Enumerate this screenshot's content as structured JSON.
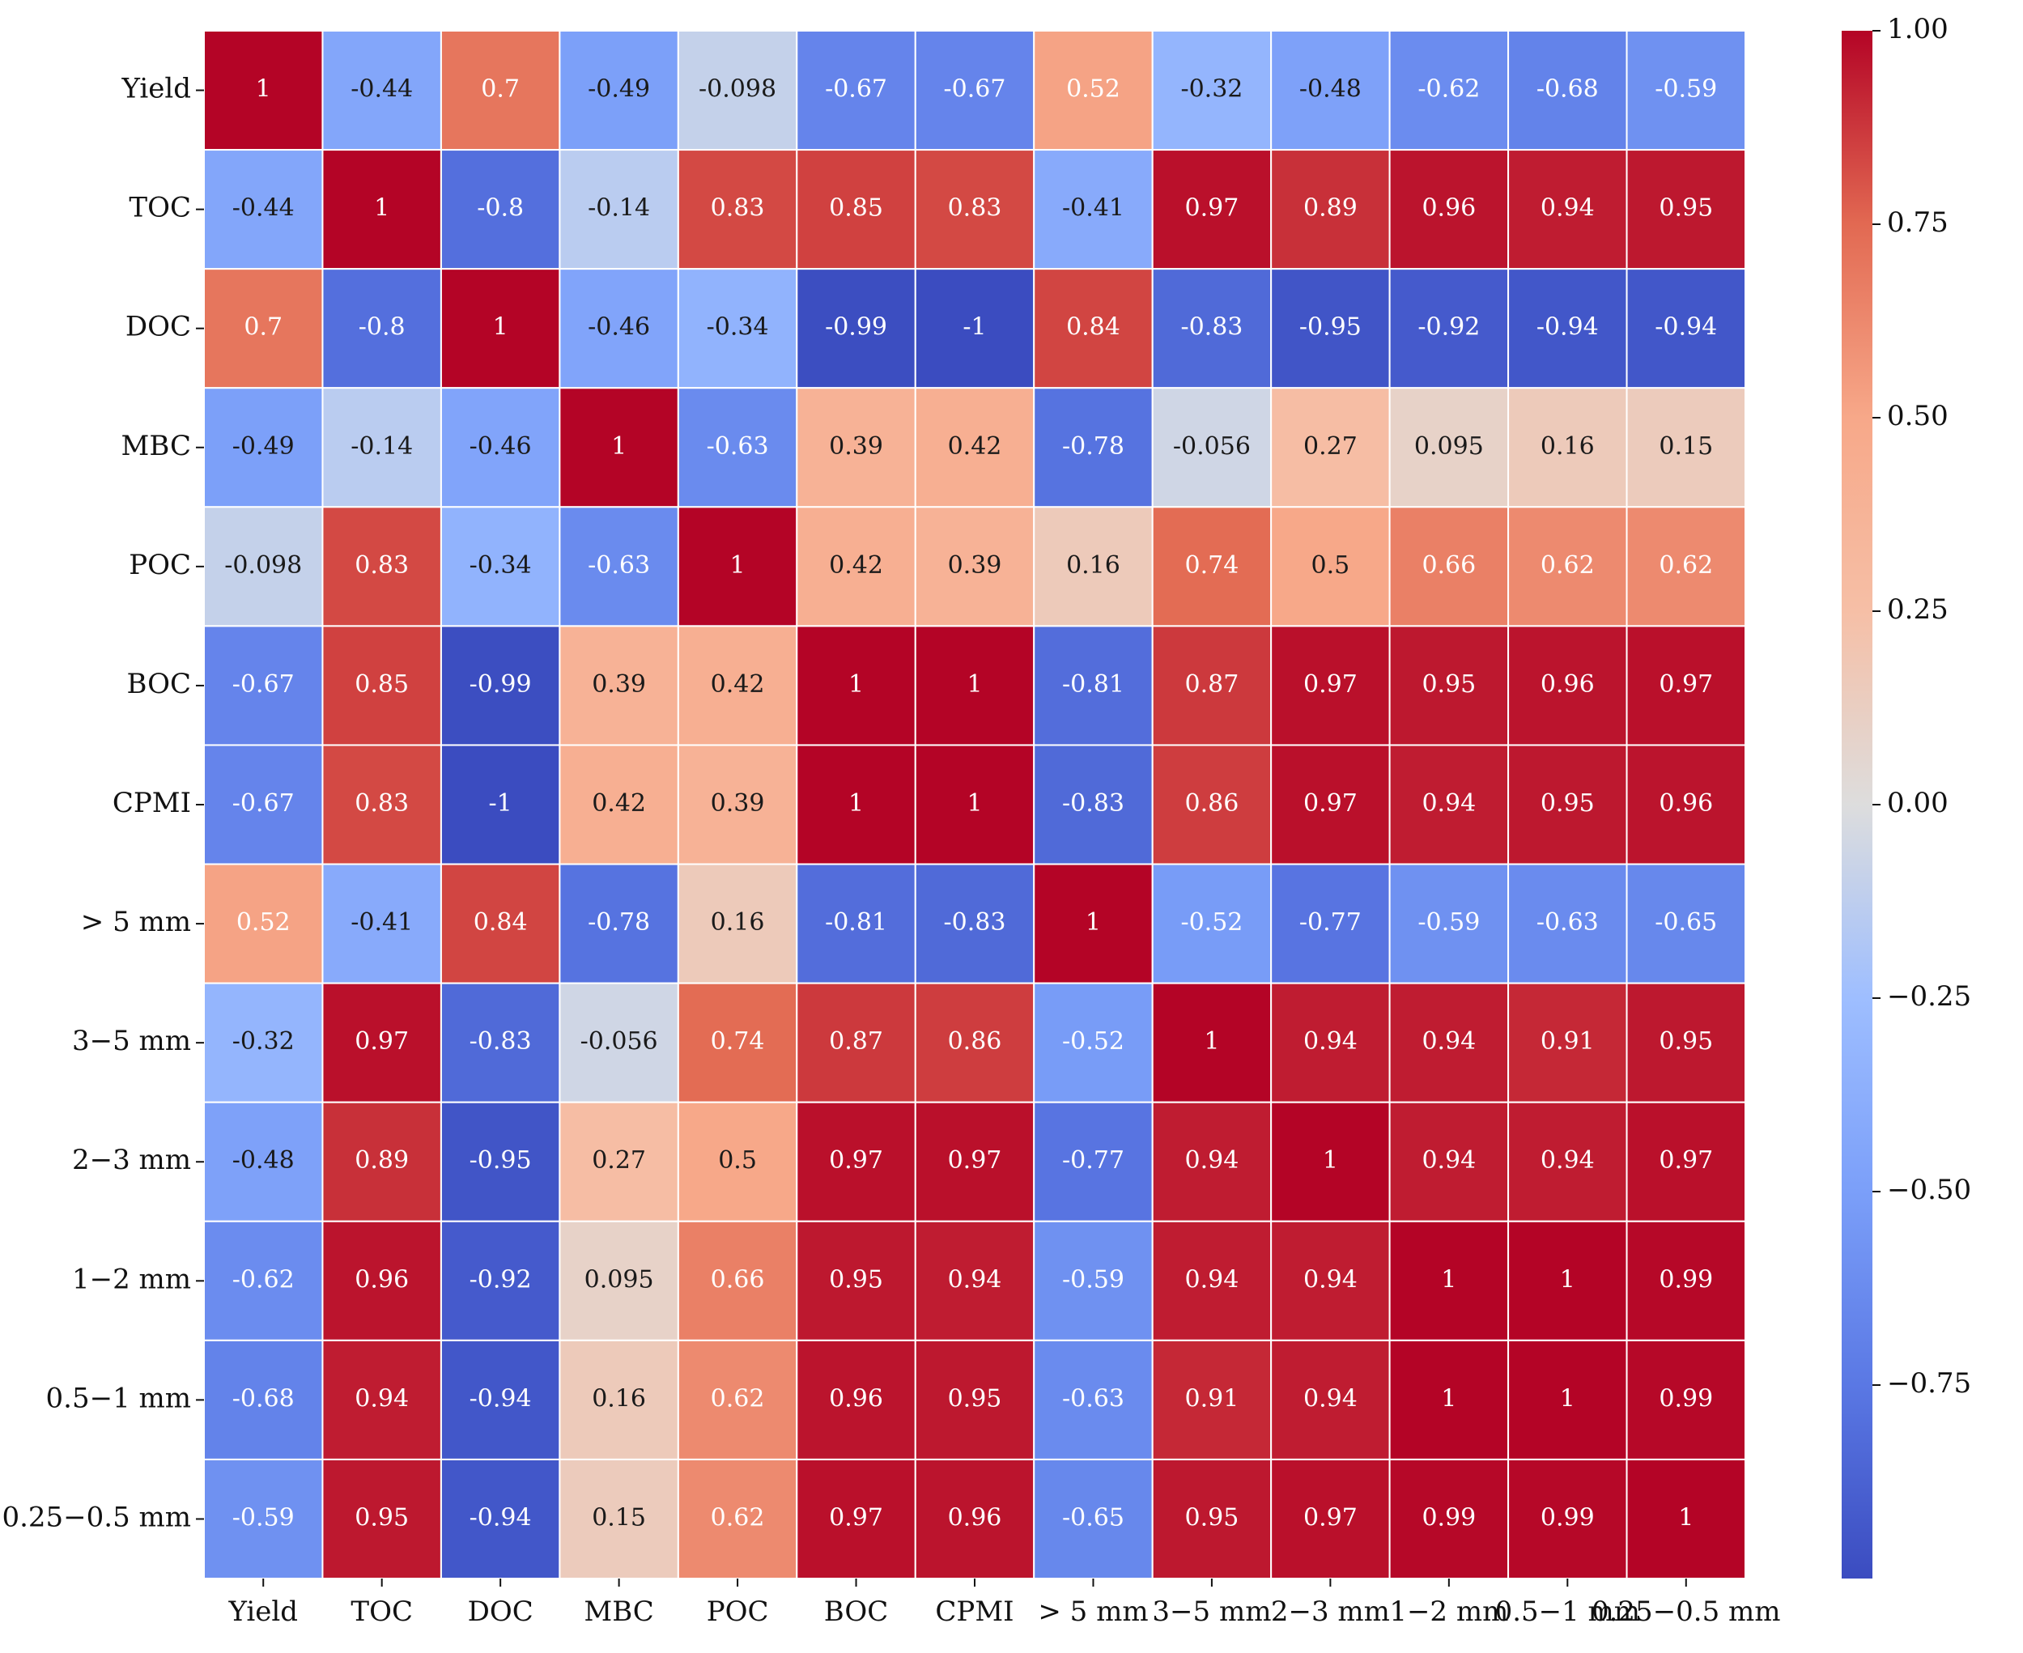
{
  "chart_data": {
    "type": "heatmap",
    "title": "",
    "xlabel": "",
    "ylabel": "",
    "row_labels": [
      "Yield",
      "TOC",
      "DOC",
      "MBC",
      "POC",
      "BOC",
      "CPMI",
      "> 5 mm",
      "3−5 mm",
      "2−3 mm",
      "1−2 mm",
      "0.5−1 mm",
      "0.25−0.5 mm"
    ],
    "col_labels": [
      "Yield",
      "TOC",
      "DOC",
      "MBC",
      "POC",
      "BOC",
      "CPMI",
      "> 5 mm",
      "3−5 mm",
      "2−3 mm",
      "1−2 mm",
      "0.5−1 mm",
      "0.25−0.5 mm"
    ],
    "values": [
      [
        1,
        -0.44,
        0.7,
        -0.49,
        -0.098,
        -0.67,
        -0.67,
        0.52,
        -0.32,
        -0.48,
        -0.62,
        -0.68,
        -0.59
      ],
      [
        -0.44,
        1,
        -0.8,
        -0.14,
        0.83,
        0.85,
        0.83,
        -0.41,
        0.97,
        0.89,
        0.96,
        0.94,
        0.95
      ],
      [
        0.7,
        -0.8,
        1,
        -0.46,
        -0.34,
        -0.99,
        -1,
        0.84,
        -0.83,
        -0.95,
        -0.92,
        -0.94,
        -0.94
      ],
      [
        -0.49,
        -0.14,
        -0.46,
        1,
        -0.63,
        0.39,
        0.42,
        -0.78,
        -0.056,
        0.27,
        0.095,
        0.16,
        0.15
      ],
      [
        -0.098,
        0.83,
        -0.34,
        -0.63,
        1,
        0.42,
        0.39,
        0.16,
        0.74,
        0.5,
        0.66,
        0.62,
        0.62
      ],
      [
        -0.67,
        0.85,
        -0.99,
        0.39,
        0.42,
        1,
        1,
        -0.81,
        0.87,
        0.97,
        0.95,
        0.96,
        0.97
      ],
      [
        -0.67,
        0.83,
        -1,
        0.42,
        0.39,
        1,
        1,
        -0.83,
        0.86,
        0.97,
        0.94,
        0.95,
        0.96
      ],
      [
        0.52,
        -0.41,
        0.84,
        -0.78,
        0.16,
        -0.81,
        -0.83,
        1,
        -0.52,
        -0.77,
        -0.59,
        -0.63,
        -0.65
      ],
      [
        -0.32,
        0.97,
        -0.83,
        -0.056,
        0.74,
        0.87,
        0.86,
        -0.52,
        1,
        0.94,
        0.94,
        0.91,
        0.95
      ],
      [
        -0.48,
        0.89,
        -0.95,
        0.27,
        0.5,
        0.97,
        0.97,
        -0.77,
        0.94,
        1,
        0.94,
        0.94,
        0.97
      ],
      [
        -0.62,
        0.96,
        -0.92,
        0.095,
        0.66,
        0.95,
        0.94,
        -0.59,
        0.94,
        0.94,
        1,
        1,
        0.99
      ],
      [
        -0.68,
        0.94,
        -0.94,
        0.16,
        0.62,
        0.96,
        0.95,
        -0.63,
        0.91,
        0.94,
        1,
        1,
        0.99
      ],
      [
        -0.59,
        0.95,
        -0.94,
        0.15,
        0.62,
        0.97,
        0.96,
        -0.65,
        0.95,
        0.97,
        0.99,
        0.99,
        1
      ]
    ],
    "value_labels": [
      [
        "1",
        "-0.44",
        "0.7",
        "-0.49",
        "-0.098",
        "-0.67",
        "-0.67",
        "0.52",
        "-0.32",
        "-0.48",
        "-0.62",
        "-0.68",
        "-0.59"
      ],
      [
        "-0.44",
        "1",
        "-0.8",
        "-0.14",
        "0.83",
        "0.85",
        "0.83",
        "-0.41",
        "0.97",
        "0.89",
        "0.96",
        "0.94",
        "0.95"
      ],
      [
        "0.7",
        "-0.8",
        "1",
        "-0.46",
        "-0.34",
        "-0.99",
        "-1",
        "0.84",
        "-0.83",
        "-0.95",
        "-0.92",
        "-0.94",
        "-0.94"
      ],
      [
        "-0.49",
        "-0.14",
        "-0.46",
        "1",
        "-0.63",
        "0.39",
        "0.42",
        "-0.78",
        "-0.056",
        "0.27",
        "0.095",
        "0.16",
        "0.15"
      ],
      [
        "-0.098",
        "0.83",
        "-0.34",
        "-0.63",
        "1",
        "0.42",
        "0.39",
        "0.16",
        "0.74",
        "0.5",
        "0.66",
        "0.62",
        "0.62"
      ],
      [
        "-0.67",
        "0.85",
        "-0.99",
        "0.39",
        "0.42",
        "1",
        "1",
        "-0.81",
        "0.87",
        "0.97",
        "0.95",
        "0.96",
        "0.97"
      ],
      [
        "-0.67",
        "0.83",
        "-1",
        "0.42",
        "0.39",
        "1",
        "1",
        "-0.83",
        "0.86",
        "0.97",
        "0.94",
        "0.95",
        "0.96"
      ],
      [
        "0.52",
        "-0.41",
        "0.84",
        "-0.78",
        "0.16",
        "-0.81",
        "-0.83",
        "1",
        "-0.52",
        "-0.77",
        "-0.59",
        "-0.63",
        "-0.65"
      ],
      [
        "-0.32",
        "0.97",
        "-0.83",
        "-0.056",
        "0.74",
        "0.87",
        "0.86",
        "-0.52",
        "1",
        "0.94",
        "0.94",
        "0.91",
        "0.95"
      ],
      [
        "-0.48",
        "0.89",
        "-0.95",
        "0.27",
        "0.5",
        "0.97",
        "0.97",
        "-0.77",
        "0.94",
        "1",
        "0.94",
        "0.94",
        "0.97"
      ],
      [
        "-0.62",
        "0.96",
        "-0.92",
        "0.095",
        "0.66",
        "0.95",
        "0.94",
        "-0.59",
        "0.94",
        "0.94",
        "1",
        "1",
        "0.99"
      ],
      [
        "-0.68",
        "0.94",
        "-0.94",
        "0.16",
        "0.62",
        "0.96",
        "0.95",
        "-0.63",
        "0.91",
        "0.94",
        "1",
        "1",
        "0.99"
      ],
      [
        "-0.59",
        "0.95",
        "-0.94",
        "0.15",
        "0.62",
        "0.97",
        "0.96",
        "-0.65",
        "0.95",
        "0.97",
        "0.99",
        "0.99",
        "1"
      ]
    ],
    "value_range": [
      -1,
      1
    ],
    "colormap": "coolwarm",
    "colorbar": {
      "ticks": [
        1.0,
        0.75,
        0.5,
        0.25,
        0.0,
        -0.25,
        -0.5,
        -0.75
      ],
      "tick_labels": [
        "1.00",
        "0.75",
        "0.50",
        "0.25",
        "0.00",
        "−0.25",
        "−0.50",
        "−0.75"
      ],
      "placement": "right"
    },
    "grid": true,
    "colors": {
      "low": "#3b4cc0",
      "mid": "#dddddd",
      "high": "#b40426",
      "cell_border": "#ffffff",
      "axis_text": "#111111"
    }
  }
}
